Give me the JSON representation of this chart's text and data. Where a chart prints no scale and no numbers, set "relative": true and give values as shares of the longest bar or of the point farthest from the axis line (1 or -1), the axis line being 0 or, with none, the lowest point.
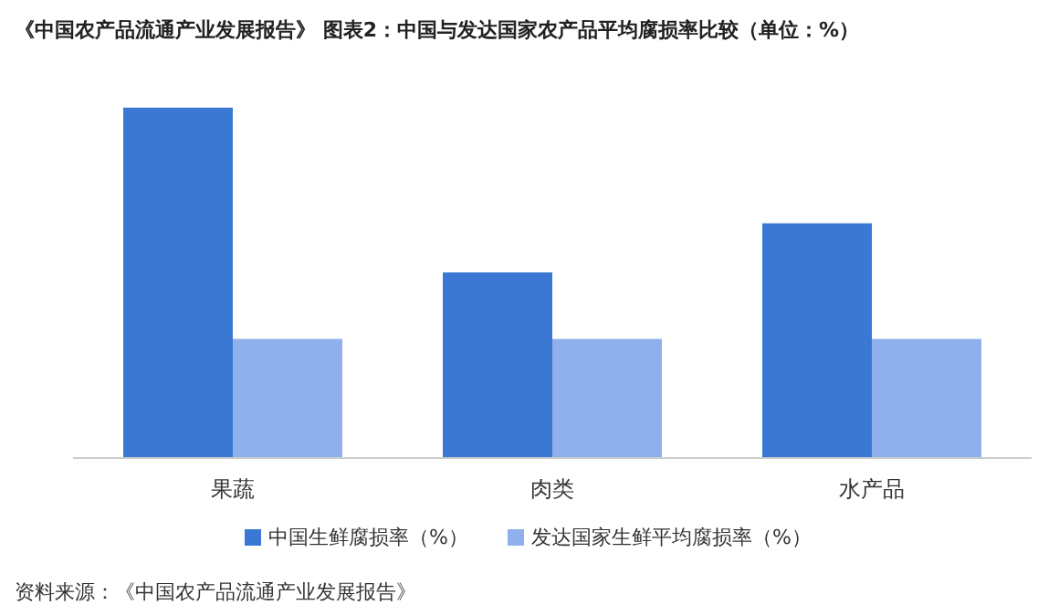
{
  "chart_data": {
    "type": "bar",
    "title": "《中国农产品流通产业发展报告》 图表2：中国与发达国家农产品平均腐损率比较（单位：%）",
    "categories": [
      "果蔬",
      "肉类",
      "水产品"
    ],
    "relative": true,
    "legend": "bottom",
    "series": [
      {
        "name": "中国生鲜腐损率（%）",
        "color": "#3a78d4",
        "values": [
          1,
          0.53,
          0.67
        ]
      },
      {
        "name": "发达国家生鲜平均腐损率（%）",
        "color": "#8fb0ec",
        "values": [
          0.34,
          0.34,
          0.34
        ]
      }
    ],
    "annotations": [
      "资料来源：《中国农产品流通产业发展报告》"
    ]
  }
}
